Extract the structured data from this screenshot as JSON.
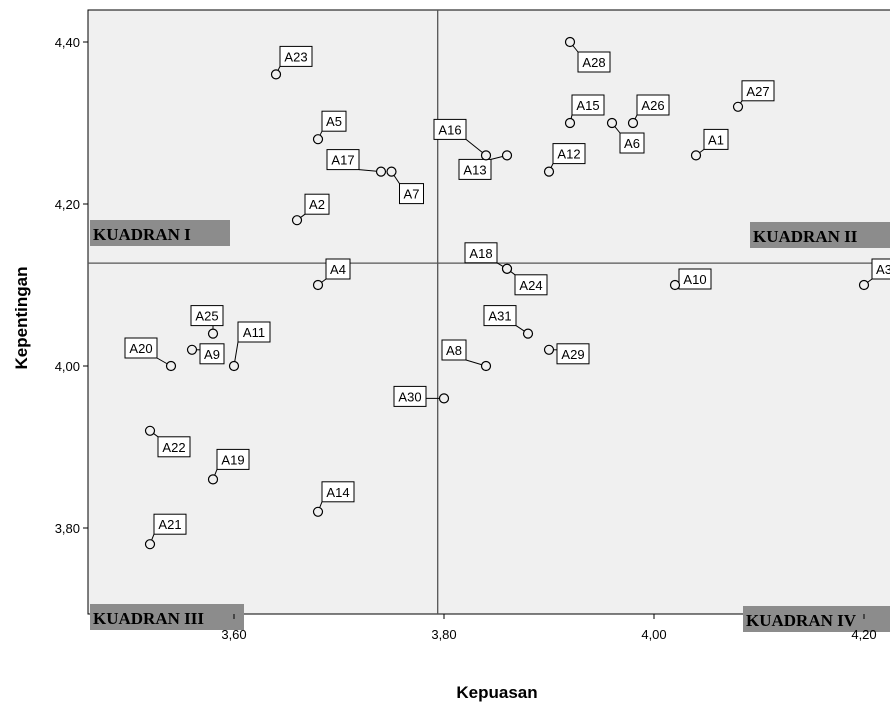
{
  "chart_data": {
    "type": "scatter",
    "xlabel": "Kepuasan",
    "ylabel": "Kepentingan",
    "xlim": [
      3.46,
      4.25
    ],
    "ylim": [
      3.68,
      4.44
    ],
    "x_ticks": [
      {
        "value": 3.6,
        "label": "3,60"
      },
      {
        "value": 3.8,
        "label": "3,80"
      },
      {
        "value": 4.0,
        "label": "4,00"
      },
      {
        "value": 4.2,
        "label": "4,20"
      }
    ],
    "y_ticks": [
      {
        "value": 3.8,
        "label": "3,80"
      },
      {
        "value": 4.0,
        "label": "4,00"
      },
      {
        "value": 4.2,
        "label": "4,20"
      },
      {
        "value": 4.4,
        "label": "4,40"
      }
    ],
    "reference_lines": {
      "x": 3.794,
      "y": 4.127
    },
    "quadrants": [
      {
        "label": "KUADRAN I",
        "corner": "top-left"
      },
      {
        "label": "KUADRAN II",
        "corner": "top-right"
      },
      {
        "label": "KUADRAN III",
        "corner": "bottom-left"
      },
      {
        "label": "KUADRAN IV",
        "corner": "bottom-right"
      }
    ],
    "points": [
      {
        "label": "A1",
        "x": 4.04,
        "y": 4.26
      },
      {
        "label": "A2",
        "x": 3.66,
        "y": 4.18
      },
      {
        "label": "A3",
        "x": 4.2,
        "y": 4.1
      },
      {
        "label": "A4",
        "x": 3.68,
        "y": 4.1
      },
      {
        "label": "A5",
        "x": 3.68,
        "y": 4.28
      },
      {
        "label": "A6",
        "x": 3.96,
        "y": 4.3
      },
      {
        "label": "A7",
        "x": 3.75,
        "y": 4.24
      },
      {
        "label": "A8",
        "x": 3.84,
        "y": 4.0
      },
      {
        "label": "A9",
        "x": 3.56,
        "y": 4.02
      },
      {
        "label": "A10",
        "x": 4.02,
        "y": 4.1
      },
      {
        "label": "A11",
        "x": 3.6,
        "y": 4.0
      },
      {
        "label": "A12",
        "x": 3.9,
        "y": 4.24
      },
      {
        "label": "A13",
        "x": 3.86,
        "y": 4.26
      },
      {
        "label": "A14",
        "x": 3.68,
        "y": 3.82
      },
      {
        "label": "A15",
        "x": 3.92,
        "y": 4.3
      },
      {
        "label": "A16",
        "x": 3.84,
        "y": 4.26
      },
      {
        "label": "A17",
        "x": 3.74,
        "y": 4.24
      },
      {
        "label": "A18",
        "x": 3.86,
        "y": 4.12
      },
      {
        "label": "A19",
        "x": 3.58,
        "y": 3.86
      },
      {
        "label": "A20",
        "x": 3.54,
        "y": 4.0
      },
      {
        "label": "A21",
        "x": 3.52,
        "y": 3.78
      },
      {
        "label": "A22",
        "x": 3.52,
        "y": 3.92
      },
      {
        "label": "A23",
        "x": 3.64,
        "y": 4.36
      },
      {
        "label": "A24",
        "x": 3.86,
        "y": 4.12
      },
      {
        "label": "A25",
        "x": 3.58,
        "y": 4.04
      },
      {
        "label": "A26",
        "x": 3.98,
        "y": 4.3
      },
      {
        "label": "A27",
        "x": 4.08,
        "y": 4.32
      },
      {
        "label": "A28",
        "x": 3.92,
        "y": 4.4
      },
      {
        "label": "A29",
        "x": 3.9,
        "y": 4.02
      },
      {
        "label": "A30",
        "x": 3.8,
        "y": 3.96
      },
      {
        "label": "A31",
        "x": 3.88,
        "y": 4.04
      }
    ]
  }
}
